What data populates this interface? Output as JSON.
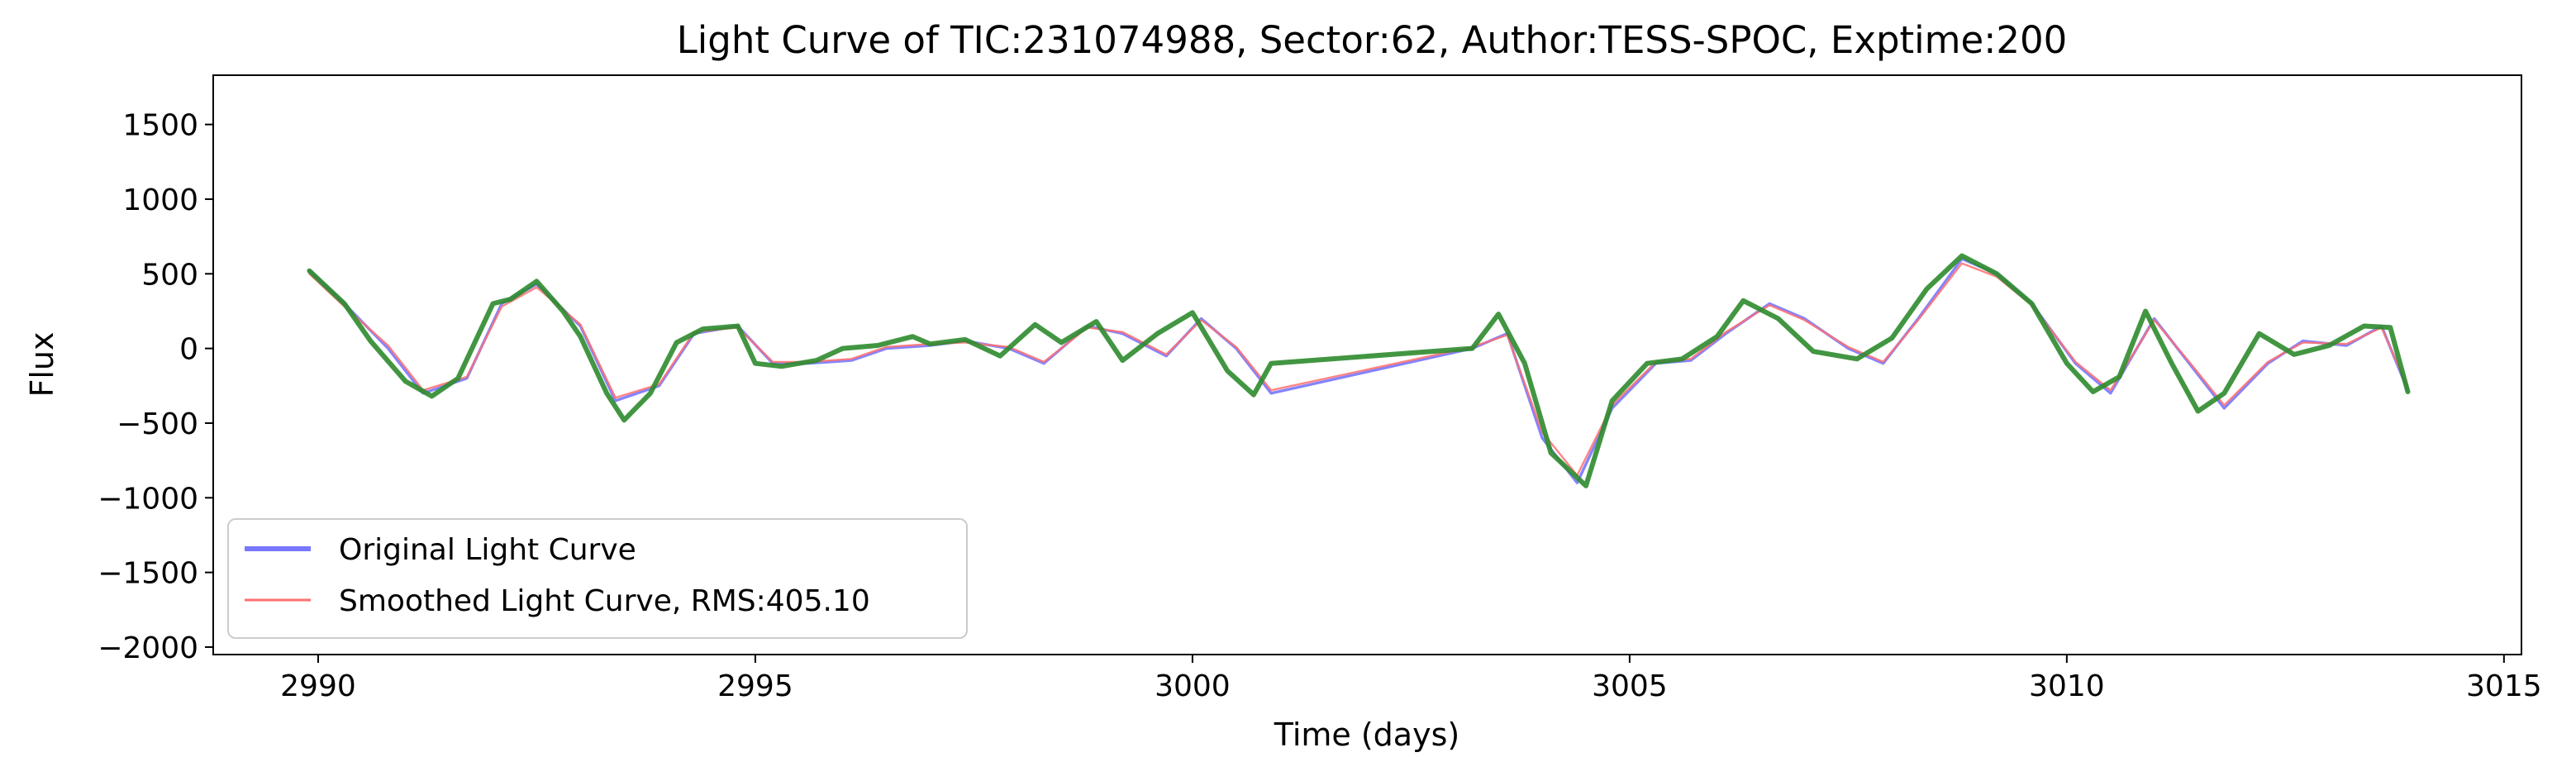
{
  "chart_data": {
    "type": "line",
    "title": "Light Curve of TIC:231074988, Sector:62, Author:TESS-SPOC, Exptime:200",
    "xlabel": "Time (days)",
    "ylabel": "Flux",
    "xlim": [
      2988.8,
      3015.2
    ],
    "ylim": [
      -2050,
      1830
    ],
    "x_ticks": [
      2990,
      2995,
      3000,
      3005,
      3010,
      3015
    ],
    "y_ticks": [
      -2000,
      -1500,
      -1000,
      -500,
      0,
      500,
      1000,
      1500
    ],
    "x_tick_labels": [
      "2990",
      "2995",
      "3000",
      "3005",
      "3010",
      "3015"
    ],
    "y_tick_labels": [
      "−2000",
      "−1500",
      "−1000",
      "−500",
      "0",
      "500",
      "1000",
      "1500"
    ],
    "grid": false,
    "legend_position": "lower-left",
    "colors": {
      "original": "#7777ff",
      "smoothed": "#ff6f6f",
      "trend": "#2e8b2e"
    },
    "legend": [
      {
        "label": "Original Light Curve",
        "color": "#7777ff"
      },
      {
        "label": "Smoothed Light Curve, RMS:405.10",
        "color": "#ff6f6f"
      }
    ],
    "series": [
      {
        "name": "Original Light Curve",
        "x": [
          2989.9,
          2990.3,
          2990.8,
          2991.2,
          2991.7,
          2992.1,
          2992.5,
          2993.0,
          2993.4,
          2993.9,
          2994.3,
          2994.8,
          2995.2,
          2995.6,
          2996.1,
          2996.5,
          2997.0,
          2997.4,
          2997.9,
          2998.3,
          2998.8,
          2999.2,
          2999.7,
          3000.1,
          3000.5,
          3000.9,
          3003.2,
          3003.6,
          3004.0,
          3004.4,
          3004.8,
          3005.3,
          3005.7,
          3006.1,
          3006.6,
          3007.0,
          3007.5,
          3007.9,
          3008.3,
          3008.8,
          3009.2,
          3009.6,
          3010.1,
          3010.5,
          3011.0,
          3011.4,
          3011.8,
          3012.3,
          3012.7,
          3013.2,
          3013.6,
          3013.9
        ],
        "y": [
          520,
          300,
          0,
          -300,
          -200,
          300,
          430,
          150,
          -350,
          -250,
          100,
          150,
          -100,
          -100,
          -80,
          0,
          20,
          50,
          0,
          -100,
          150,
          100,
          -50,
          200,
          0,
          -300,
          0,
          100,
          -600,
          -900,
          -400,
          -100,
          -80,
          100,
          300,
          200,
          0,
          -100,
          200,
          600,
          500,
          300,
          -100,
          -300,
          200,
          -100,
          -400,
          -100,
          50,
          20,
          150,
          -280
        ]
      },
      {
        "name": "Smoothed Light Curve, RMS:405.10",
        "x": [
          2989.9,
          2990.3,
          2990.8,
          2991.2,
          2991.7,
          2992.1,
          2992.5,
          2993.0,
          2993.4,
          2993.9,
          2994.3,
          2994.8,
          2995.2,
          2995.6,
          2996.1,
          2996.5,
          2997.0,
          2997.4,
          2997.9,
          2998.3,
          2998.8,
          2999.2,
          2999.7,
          3000.1,
          3000.5,
          3000.9,
          3003.2,
          3003.6,
          3004.0,
          3004.4,
          3004.8,
          3005.3,
          3005.7,
          3006.1,
          3006.6,
          3007.0,
          3007.5,
          3007.9,
          3008.3,
          3008.8,
          3009.2,
          3009.6,
          3010.1,
          3010.5,
          3011.0,
          3011.4,
          3011.8,
          3012.3,
          3012.7,
          3013.2,
          3013.6,
          3013.9
        ],
        "y": [
          500,
          280,
          20,
          -280,
          -190,
          280,
          410,
          160,
          -330,
          -240,
          110,
          140,
          -90,
          -90,
          -70,
          10,
          30,
          40,
          10,
          -90,
          140,
          110,
          -40,
          190,
          10,
          -280,
          10,
          90,
          -560,
          -850,
          -380,
          -90,
          -70,
          110,
          290,
          190,
          10,
          -90,
          190,
          570,
          480,
          290,
          -90,
          -280,
          190,
          -90,
          -380,
          -90,
          40,
          30,
          140,
          -260
        ]
      },
      {
        "x": [
          2989.9,
          2990.3,
          2990.6,
          2991.0,
          2991.3,
          2991.6,
          2992.0,
          2992.2,
          2992.5,
          2992.8,
          2993.0,
          2993.3,
          2993.5,
          2993.8,
          2994.1,
          2994.4,
          2994.8,
          2995.0,
          2995.3,
          2995.7,
          2996.0,
          2996.4,
          2996.8,
          2997.0,
          2997.4,
          2997.8,
          2998.2,
          2998.5,
          2998.9,
          2999.2,
          2999.6,
          3000.0,
          3000.4,
          3000.7,
          3000.9,
          3003.2,
          3003.5,
          3003.8,
          3004.1,
          3004.5,
          3004.8,
          3005.2,
          3005.6,
          3006.0,
          3006.3,
          3006.7,
          3007.1,
          3007.6,
          3008.0,
          3008.4,
          3008.8,
          3009.2,
          3009.6,
          3010.0,
          3010.3,
          3010.6,
          3010.9,
          3011.2,
          3011.5,
          3011.8,
          3012.2,
          3012.6,
          3013.0,
          3013.4,
          3013.7,
          3013.9
        ],
        "y": [
          520,
          300,
          50,
          -220,
          -320,
          -200,
          300,
          330,
          450,
          250,
          80,
          -300,
          -480,
          -300,
          40,
          130,
          150,
          -100,
          -120,
          -80,
          0,
          20,
          80,
          30,
          60,
          -50,
          160,
          40,
          180,
          -80,
          100,
          240,
          -150,
          -310,
          -100,
          0,
          230,
          -100,
          -700,
          -920,
          -350,
          -100,
          -70,
          80,
          320,
          200,
          -20,
          -70,
          70,
          400,
          620,
          500,
          300,
          -100,
          -290,
          -190,
          250,
          -100,
          -420,
          -300,
          100,
          -40,
          20,
          150,
          140,
          -290
        ]
      }
    ]
  }
}
